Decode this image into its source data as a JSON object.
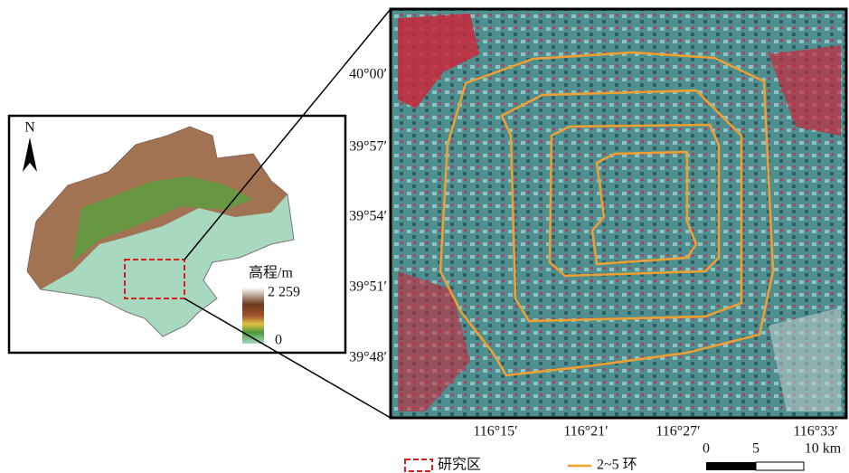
{
  "inset": {
    "north": "N",
    "elevation_title": "高程/m",
    "elevation_max": "2 259",
    "elevation_min": "0"
  },
  "latitude_labels": [
    "40°00′",
    "39°57′",
    "39°54′",
    "39°51′",
    "39°48′"
  ],
  "longitude_labels": [
    "116°15′",
    "116°21′",
    "116°27′",
    "116°33′"
  ],
  "legend": [
    "研究区",
    "2~5 环"
  ],
  "scale_bar": [
    "0",
    "5",
    "10 km"
  ]
}
